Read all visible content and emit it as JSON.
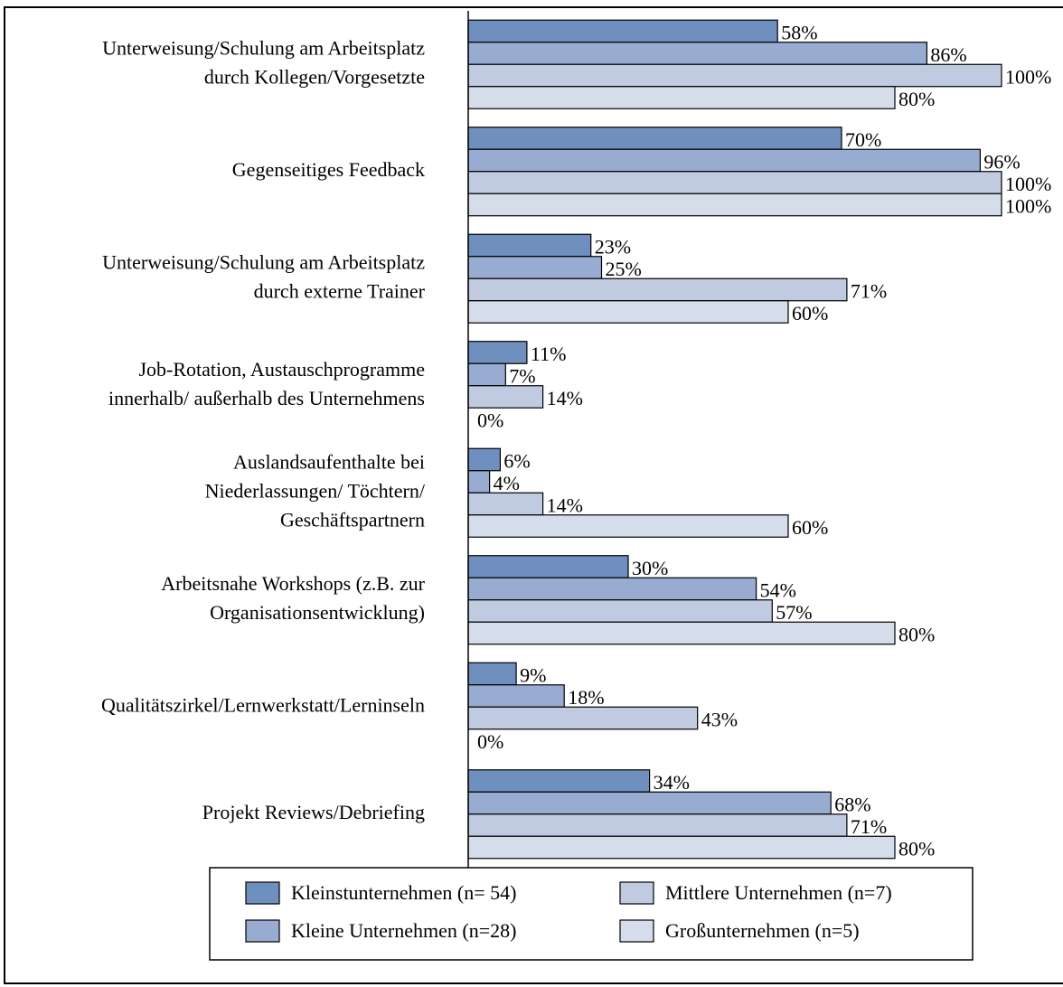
{
  "chart_data": {
    "type": "bar",
    "orientation": "horizontal",
    "categories": [
      "Unterweisung/Schulung am Arbeitsplatz\ndurch Kollegen/Vorgesetzte",
      "Gegenseitiges Feedback",
      "Unterweisung/Schulung am Arbeitsplatz\ndurch externe Trainer",
      "Job-Rotation, Austauschprogramme\ninnerhalb/ außerhalb des Unternehmens",
      "Auslandsaufenthalte bei\nNiederlassungen/ Töchtern/\nGeschäftspartnern",
      "Arbeitsnahe Workshops (z.B. zur\nOrganisationsentwicklung)",
      "Qualitätszirkel/Lernwerkstatt/Lerninseln",
      "Projekt Reviews/Debriefing"
    ],
    "series": [
      {
        "name": "Kleinstunternehmen (n=  54)",
        "color": "#6f8fbf",
        "values": [
          58,
          70,
          23,
          11,
          6,
          30,
          9,
          34
        ],
        "value_labels": [
          "58%",
          "70%",
          "23%",
          "11%",
          "6%",
          "30%",
          "9%",
          "34%"
        ]
      },
      {
        "name": "Kleine Unternehmen (n=28)",
        "color": "#98acd1",
        "values": [
          86,
          96,
          25,
          7,
          4,
          54,
          18,
          68
        ],
        "value_labels": [
          "86%",
          "96%",
          "25%",
          "7%",
          "4%",
          "54%",
          "18%",
          "68%"
        ]
      },
      {
        "name": "Mittlere Unternehmen (n=7)",
        "color": "#c0cbe1",
        "values": [
          100,
          100,
          71,
          14,
          14,
          57,
          43,
          71
        ],
        "value_labels": [
          "100%",
          "100%",
          "71%",
          "14%",
          "14%",
          "57%",
          "43%",
          "71%"
        ]
      },
      {
        "name": "Großunternehmen (n=5)",
        "color": "#d5dcea",
        "values": [
          80,
          100,
          60,
          0,
          60,
          80,
          0,
          80
        ],
        "value_labels": [
          "80%",
          "100%",
          "60%",
          "0%",
          "60%",
          "80%",
          "0%",
          "80%"
        ]
      }
    ],
    "xlim": [
      0,
      100
    ],
    "legend": "bottom"
  }
}
